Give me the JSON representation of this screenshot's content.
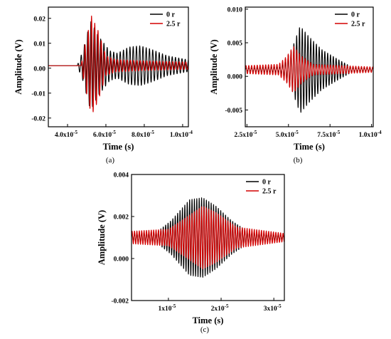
{
  "chart_data": [
    {
      "id": "a",
      "type": "line",
      "panel_label": "(a)",
      "xlabel": "Time (s)",
      "ylabel": "Amplitude (V)",
      "xlim": [
        3e-05,
        0.000103
      ],
      "ylim": [
        -0.0235,
        0.0245
      ],
      "xticks": [
        4e-05,
        6e-05,
        8e-05,
        0.0001
      ],
      "xtick_labels": [
        "4.0x10",
        "6.0x10",
        "8.0x10",
        "1.0x10"
      ],
      "xtick_exponents": [
        "-5",
        "-5",
        "-5",
        "-4"
      ],
      "yticks": [
        -0.02,
        -0.01,
        0.0,
        0.01,
        0.02
      ],
      "ytick_labels": [
        "-0.02",
        "-0.01",
        "0.00",
        "0.01",
        "0.02"
      ],
      "legend_position": "top-right",
      "series": [
        {
          "name": "0 r",
          "color": "#000000",
          "baseline": 0.001,
          "start": 4.5e-05,
          "freq": 590000.0,
          "envelope": [
            [
              4.5e-05,
              0
            ],
            [
              4.8e-05,
              0.006
            ],
            [
              5.2e-05,
              0.018
            ],
            [
              5.6e-05,
              0.012
            ],
            [
              6.2e-05,
              0.006
            ],
            [
              6.6e-05,
              0.005
            ],
            [
              7.2e-05,
              0.0075
            ],
            [
              7.8e-05,
              0.008
            ],
            [
              8.4e-05,
              0.0065
            ],
            [
              9.2e-05,
              0.004
            ],
            [
              0.000102,
              0.0025
            ]
          ]
        },
        {
          "name": "2.5 r",
          "color": "#d40000",
          "baseline": 0.001,
          "start": 4.7e-05,
          "freq": 590000.0,
          "envelope": [
            [
              4.7e-05,
              0
            ],
            [
              4.9e-05,
              0.008
            ],
            [
              5.25e-05,
              0.02
            ],
            [
              5.6e-05,
              0.014
            ],
            [
              6e-05,
              0.004
            ],
            [
              6.5e-05,
              0.0025
            ],
            [
              8e-05,
              0.002
            ],
            [
              0.000102,
              0.0015
            ]
          ]
        }
      ]
    },
    {
      "id": "b",
      "type": "line",
      "panel_label": "(b)",
      "xlabel": "Time (s)",
      "ylabel": "Amplitude (V)",
      "xlim": [
        2.4e-05,
        0.000101
      ],
      "ylim": [
        -0.0075,
        0.0103
      ],
      "xticks": [
        2.5e-05,
        5e-05,
        7.5e-05,
        0.0001
      ],
      "xtick_labels": [
        "2.5x10",
        "5.0x10",
        "7.5x10",
        "1.0x10"
      ],
      "xtick_exponents": [
        "-5",
        "-5",
        "-5",
        "-4"
      ],
      "yticks": [
        -0.005,
        0.0,
        0.005,
        0.01
      ],
      "ytick_labels": [
        "-0.005",
        "0.000",
        "0.005",
        "0.010"
      ],
      "legend_position": "top-right",
      "series": [
        {
          "name": "0 r",
          "color": "#000000",
          "baseline": 0.001,
          "start": 2.4e-05,
          "freq": 590000.0,
          "envelope": [
            [
              2.4e-05,
              0.0002
            ],
            [
              4.5e-05,
              0.0004
            ],
            [
              5.2e-05,
              0.003
            ],
            [
              5.7e-05,
              0.0065
            ],
            [
              6.2e-05,
              0.005
            ],
            [
              7e-05,
              0.003
            ],
            [
              8e-05,
              0.0015
            ],
            [
              8.8e-05,
              0.0004
            ],
            [
              0.000101,
              0.0002
            ]
          ]
        },
        {
          "name": "2.5 r",
          "color": "#d40000",
          "baseline": 0.001,
          "start": 2.4e-05,
          "freq": 590000.0,
          "envelope": [
            [
              2.4e-05,
              0.0006
            ],
            [
              4.4e-05,
              0.0008
            ],
            [
              4.9e-05,
              0.002
            ],
            [
              5.3e-05,
              0.0035
            ],
            [
              5.8e-05,
              0.002
            ],
            [
              6.5e-05,
              0.0008
            ],
            [
              0.000101,
              0.0004
            ]
          ]
        }
      ]
    },
    {
      "id": "c",
      "type": "line",
      "panel_label": "(c)",
      "xlabel": "Time (s)",
      "ylabel": "Amplitude (V)",
      "xlim": [
        3e-06,
        3.2e-05
      ],
      "ylim": [
        -0.002,
        0.004
      ],
      "xticks": [
        1e-05,
        2e-05,
        3e-05
      ],
      "xtick_labels": [
        "1x10",
        "2x10",
        "3x10"
      ],
      "xtick_exponents": [
        "-5",
        "-5",
        "-5"
      ],
      "yticks": [
        -0.002,
        0.0,
        0.002,
        0.004
      ],
      "ytick_labels": [
        "-0.002",
        "0.000",
        "0.002",
        "0.004"
      ],
      "legend_position": "top-right",
      "series": [
        {
          "name": "0 r",
          "color": "#000000",
          "baseline": 0.001,
          "start": 3e-06,
          "freq": 2200000.0,
          "envelope": [
            [
              3e-06,
              0.0002
            ],
            [
              8e-06,
              0.0003
            ],
            [
              1.05e-05,
              0.0008
            ],
            [
              1.4e-05,
              0.0018
            ],
            [
              1.65e-05,
              0.0019
            ],
            [
              1.9e-05,
              0.0015
            ],
            [
              2.2e-05,
              0.0008
            ],
            [
              2.5e-05,
              0.0003
            ],
            [
              3.2e-05,
              0.0001
            ]
          ]
        },
        {
          "name": "2.5 r",
          "color": "#d40000",
          "baseline": 0.001,
          "start": 3e-06,
          "freq": 2200000.0,
          "envelope": [
            [
              3e-06,
              0.0003
            ],
            [
              1e-05,
              0.0004
            ],
            [
              1.3e-05,
              0.0009
            ],
            [
              1.65e-05,
              0.0015
            ],
            [
              1.9e-05,
              0.0012
            ],
            [
              2.3e-05,
              0.0005
            ],
            [
              3.2e-05,
              0.0002
            ]
          ]
        }
      ]
    }
  ]
}
